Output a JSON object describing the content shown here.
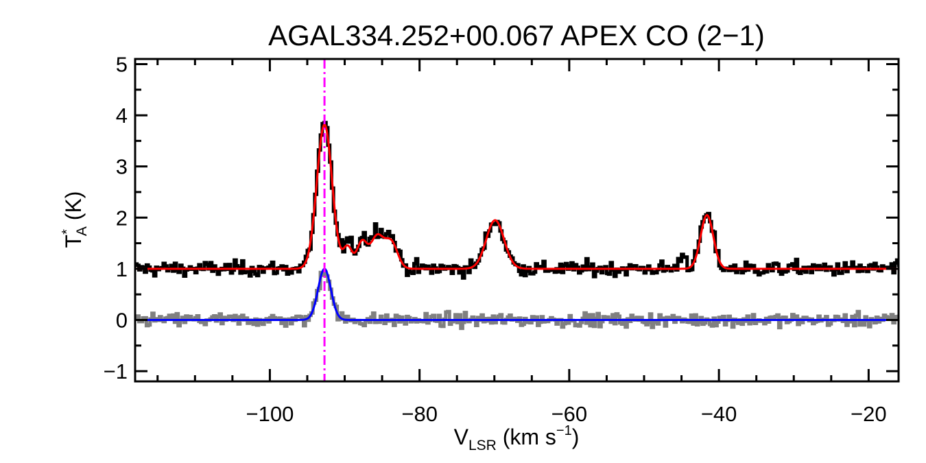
{
  "chart_data": {
    "type": "line",
    "title": "AGAL334.252+00.067  APEX CO (2−1)",
    "xlabel": {
      "main": "V",
      "sub": "LSR",
      "rest": " (km s",
      "sup": "−1",
      "end": ")"
    },
    "ylabel": {
      "main": "T",
      "sup": "*",
      "sub": "A",
      "rest": " (K)"
    },
    "xlim": [
      -118,
      -16
    ],
    "ylim": [
      -1.2,
      5.1
    ],
    "xticks": [
      -100,
      -80,
      -60,
      -40,
      -20
    ],
    "xtick_labels": [
      "−100",
      "−80",
      "−60",
      "−40",
      "−20"
    ],
    "yticks": [
      -1,
      0,
      1,
      2,
      3,
      4,
      5
    ],
    "ytick_labels": [
      "−1",
      "0",
      "1",
      "2",
      "3",
      "4",
      "5"
    ],
    "grid": false,
    "marker_line": {
      "x": -92.7,
      "color": "#ff00ff",
      "style": "dash-dot"
    },
    "series": [
      {
        "kind": "histogram-spectrum",
        "color": "#000000",
        "offset": 1.0,
        "baseline_noise": 0.1,
        "components": [
          {
            "center": -92.7,
            "amplitude": 2.8,
            "fwhm": 2.4
          },
          {
            "center": -89.6,
            "amplitude": 0.5,
            "fwhm": 1.4
          },
          {
            "center": -87.7,
            "amplitude": 0.6,
            "fwhm": 1.6
          },
          {
            "center": -85.7,
            "amplitude": 0.72,
            "fwhm": 2.0
          },
          {
            "center": -83.8,
            "amplitude": 0.6,
            "fwhm": 2.0
          },
          {
            "center": -69.9,
            "amplitude": 0.95,
            "fwhm": 2.8
          },
          {
            "center": -44.8,
            "amplitude": 0.3,
            "fwhm": 1.0
          },
          {
            "center": -41.6,
            "amplitude": 1.07,
            "fwhm": 2.0
          }
        ]
      },
      {
        "kind": "fit",
        "color": "#ff0000",
        "offset": 1.0,
        "components": [
          {
            "center": -92.7,
            "amplitude": 2.82,
            "fwhm": 2.4
          },
          {
            "center": -89.6,
            "amplitude": 0.42,
            "fwhm": 1.4
          },
          {
            "center": -87.7,
            "amplitude": 0.52,
            "fwhm": 1.6
          },
          {
            "center": -85.7,
            "amplitude": 0.62,
            "fwhm": 2.0
          },
          {
            "center": -83.8,
            "amplitude": 0.52,
            "fwhm": 2.0
          },
          {
            "center": -69.9,
            "amplitude": 0.95,
            "fwhm": 2.8
          },
          {
            "center": -41.6,
            "amplitude": 1.05,
            "fwhm": 2.0
          }
        ]
      },
      {
        "kind": "histogram-spectrum",
        "color": "#808080",
        "offset": 0.0,
        "baseline_noise": 0.09,
        "components": [
          {
            "center": -92.7,
            "amplitude": 1.0,
            "fwhm": 2.0
          }
        ]
      },
      {
        "kind": "fit",
        "color": "#0000ff",
        "offset": 0.0,
        "components": [
          {
            "center": -92.7,
            "amplitude": 1.0,
            "fwhm": 2.0
          }
        ]
      }
    ]
  }
}
